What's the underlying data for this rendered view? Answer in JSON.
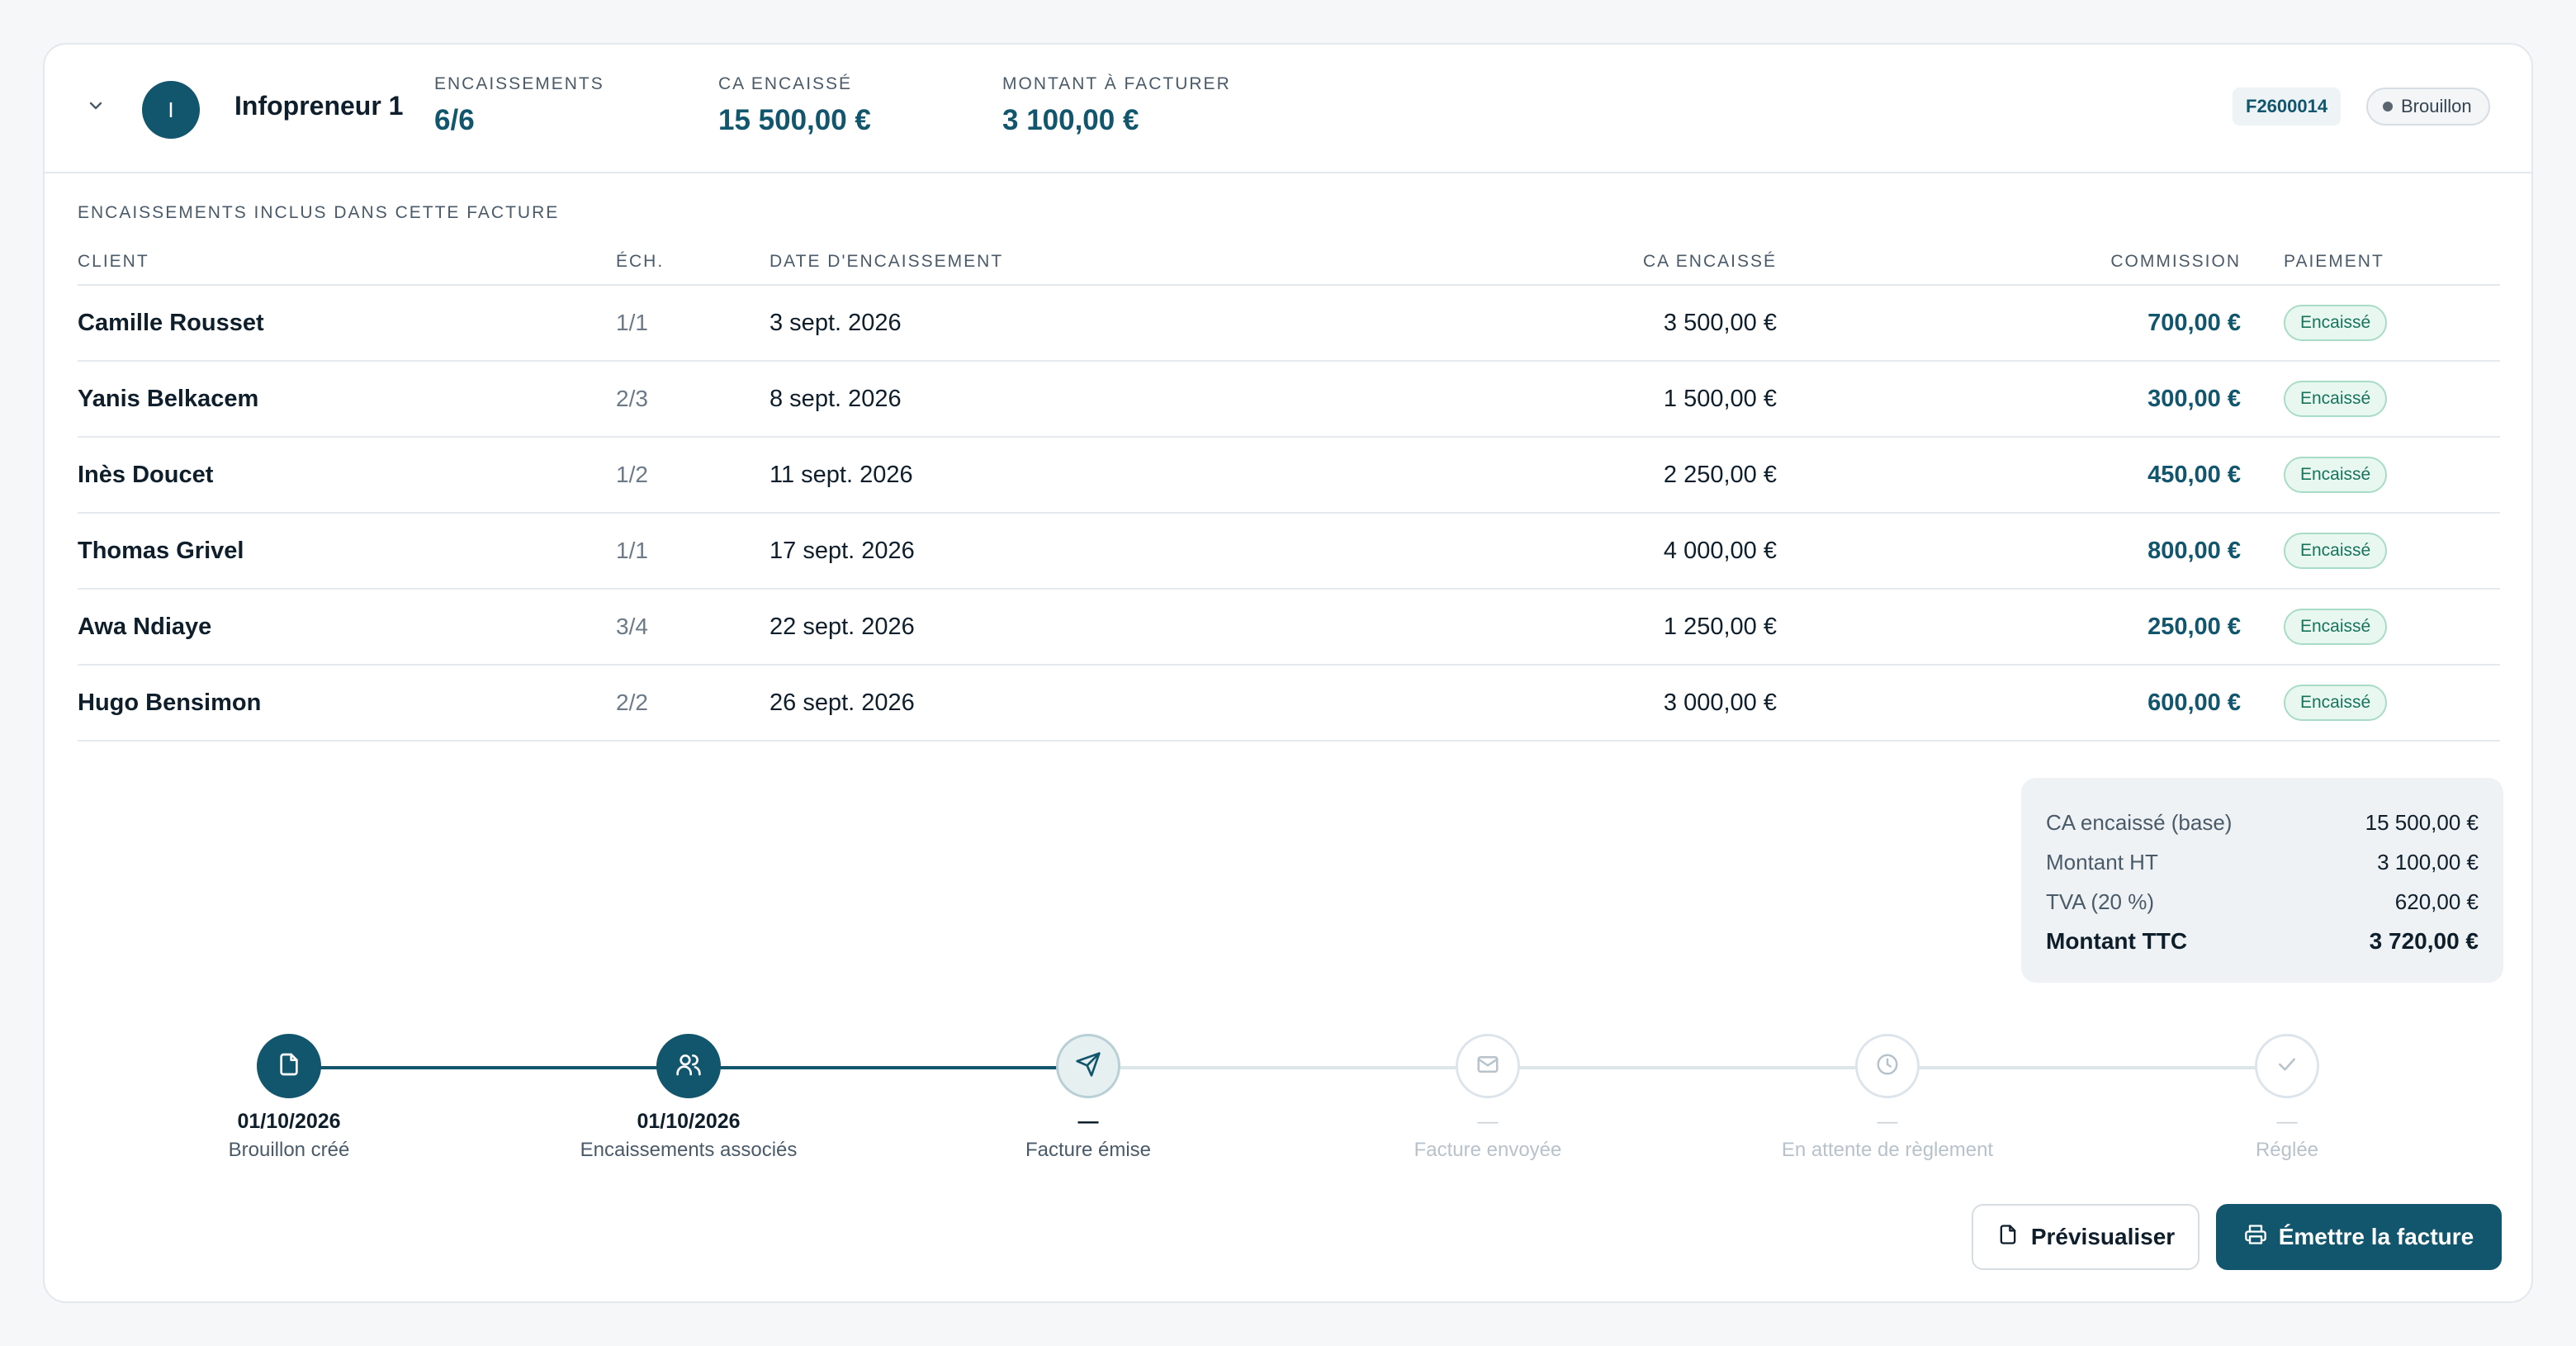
{
  "header": {
    "avatar_initial": "I",
    "name": "Infopreneur 1",
    "stats": [
      {
        "label": "Encaissements",
        "value": "6/6"
      },
      {
        "label": "CA encaissé",
        "value": "15 500,00 €"
      },
      {
        "label": "Montant à facturer",
        "value": "3 100,00 €"
      }
    ],
    "invoice_number": "F2600014",
    "status": "Brouillon"
  },
  "table": {
    "title": "Encaissements inclus dans cette facture",
    "columns": {
      "client": "Client",
      "ech": "Éch.",
      "date": "Date d'encaissement",
      "ca": "CA encaissé",
      "commission": "Commission",
      "payment": "Paiement"
    },
    "rows": [
      {
        "client": "Camille Rousset",
        "ech": "1/1",
        "date": "3 sept. 2026",
        "ca": "3 500,00 €",
        "commission": "700,00 €",
        "payment": "Encaissé"
      },
      {
        "client": "Yanis Belkacem",
        "ech": "2/3",
        "date": "8 sept. 2026",
        "ca": "1 500,00 €",
        "commission": "300,00 €",
        "payment": "Encaissé"
      },
      {
        "client": "Inès Doucet",
        "ech": "1/2",
        "date": "11 sept. 2026",
        "ca": "2 250,00 €",
        "commission": "450,00 €",
        "payment": "Encaissé"
      },
      {
        "client": "Thomas Grivel",
        "ech": "1/1",
        "date": "17 sept. 2026",
        "ca": "4 000,00 €",
        "commission": "800,00 €",
        "payment": "Encaissé"
      },
      {
        "client": "Awa Ndiaye",
        "ech": "3/4",
        "date": "22 sept. 2026",
        "ca": "1 250,00 €",
        "commission": "250,00 €",
        "payment": "Encaissé"
      },
      {
        "client": "Hugo Bensimon",
        "ech": "2/2",
        "date": "26 sept. 2026",
        "ca": "3 000,00 €",
        "commission": "600,00 €",
        "payment": "Encaissé"
      }
    ]
  },
  "totals": [
    {
      "label": "CA encaissé (base)",
      "value": "15 500,00 €"
    },
    {
      "label": "Montant HT",
      "value": "3 100,00 €"
    },
    {
      "label": "TVA (20 %)",
      "value": "620,00 €"
    },
    {
      "label": "Montant TTC",
      "value": "3 720,00 €"
    }
  ],
  "timeline": [
    {
      "date": "01/10/2026",
      "label": "Brouillon créé",
      "icon": "document-icon",
      "state": "done"
    },
    {
      "date": "01/10/2026",
      "label": "Encaissements associés",
      "icon": "users-icon",
      "state": "done"
    },
    {
      "date": "—",
      "label": "Facture émise",
      "icon": "send-icon",
      "state": "current"
    },
    {
      "date": "—",
      "label": "Facture envoyée",
      "icon": "mail-icon",
      "state": "pending"
    },
    {
      "date": "—",
      "label": "En attente de règlement",
      "icon": "clock-icon",
      "state": "pending"
    },
    {
      "date": "—",
      "label": "Réglée",
      "icon": "check-icon",
      "state": "pending"
    }
  ],
  "actions": {
    "preview_label": "Prévisualiser",
    "issue_label": "Émettre la facture"
  },
  "colors": {
    "accent": "#12566e",
    "success": "#17735a",
    "muted": "#b7c2ca"
  }
}
